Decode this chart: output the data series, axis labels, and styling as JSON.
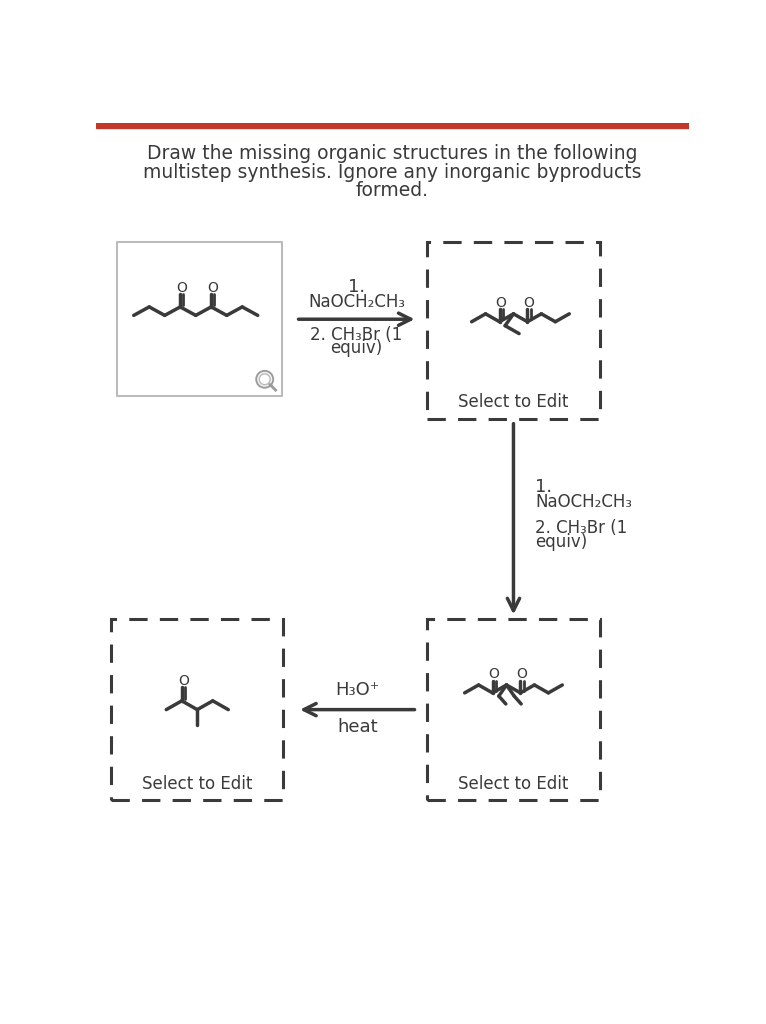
{
  "title_line1": "Draw the missing organic structures in the following",
  "title_line2": "multistep synthesis. Ignore any inorganic byproducts",
  "title_line3": "formed.",
  "bg_color": "#ffffff",
  "text_color": "#3a3a3a",
  "mol_color": "#3a3a3a",
  "line_color": "#3a3a3a",
  "top_bar_color": "#c0392b",
  "box1_edge": "#bbbbbb",
  "dashed_edge": "#3a3a3a",
  "reagent1_1": "1.",
  "reagent1_2": "NaOCH₂CH₃",
  "reagent1_3": "2. CH₃Br (1",
  "reagent1_4": "equiv)",
  "reagent2_1": "1.",
  "reagent2_2": "NaOCH₂CH₃",
  "reagent2_3": "2. CH₃Br (1",
  "reagent2_4": "equiv)",
  "reagent3_1": "H₃O⁺",
  "reagent3_2": "heat",
  "select_edit": "Select to Edit"
}
